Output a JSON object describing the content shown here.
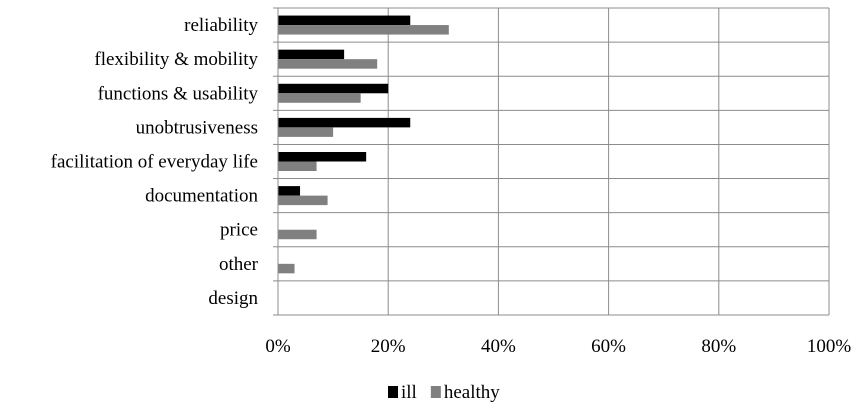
{
  "chart_data": {
    "type": "bar",
    "orientation": "horizontal",
    "categories": [
      "reliability",
      "flexibility & mobility",
      "functions & usability",
      "unobtrusiveness",
      "facilitation of everyday life",
      "documentation",
      "price",
      "other",
      "design"
    ],
    "series": [
      {
        "name": "ill",
        "color": "#000000",
        "values": [
          24,
          12,
          20,
          24,
          16,
          4,
          0,
          0,
          0
        ]
      },
      {
        "name": "healthy",
        "color": "#808080",
        "values": [
          31,
          18,
          15,
          10,
          7,
          9,
          7,
          3,
          0
        ]
      }
    ],
    "xlim": [
      0,
      100
    ],
    "xticks": [
      0,
      20,
      40,
      60,
      80,
      100
    ],
    "xtick_labels": [
      "0%",
      "20%",
      "40%",
      "60%",
      "80%",
      "100%"
    ],
    "title": "",
    "xlabel": "",
    "ylabel": "",
    "grid": true,
    "legend_position": "bottom"
  }
}
